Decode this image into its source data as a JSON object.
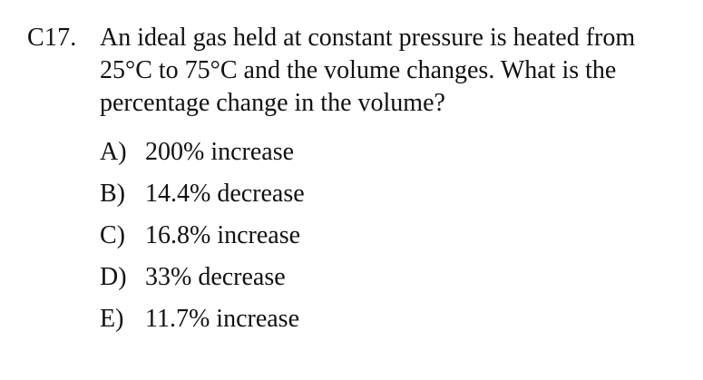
{
  "question": {
    "number": "C17.",
    "stem_lines": [
      "An ideal gas held at constant pressure is heated from",
      "25°C to 75°C and the volume changes. What is the",
      "percentage change in the volume?"
    ]
  },
  "options": [
    {
      "letter": "A)",
      "text": "200% increase"
    },
    {
      "letter": "B)",
      "text": "14.4% decrease"
    },
    {
      "letter": "C)",
      "text": "16.8% increase"
    },
    {
      "letter": "D)",
      "text": "33% decrease"
    },
    {
      "letter": "E)",
      "text": "11.7% increase"
    }
  ]
}
